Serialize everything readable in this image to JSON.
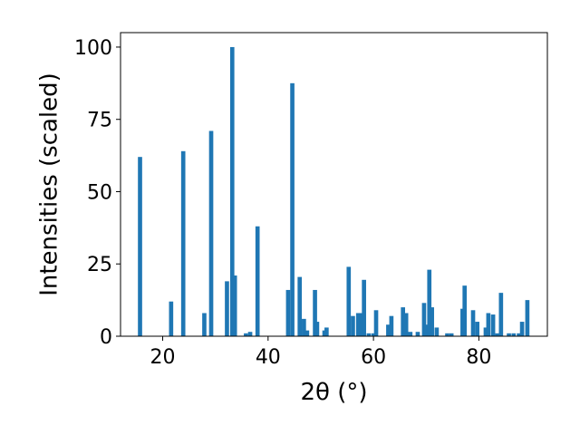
{
  "chart_data": {
    "type": "bar",
    "xlabel": "2θ (°)",
    "ylabel": "Intensities (scaled)",
    "xlim": [
      12,
      93
    ],
    "ylim": [
      0,
      105
    ],
    "xticks": [
      20,
      40,
      60,
      80
    ],
    "yticks": [
      0,
      25,
      50,
      75,
      100
    ],
    "bar_color": "#1f77b4",
    "bar_width": 0.8,
    "grid": false,
    "x": [
      15.7,
      21.6,
      23.9,
      27.9,
      29.2,
      32.2,
      33.2,
      33.7,
      35.8,
      36.6,
      38.0,
      43.8,
      44.6,
      46.0,
      46.8,
      47.4,
      48.9,
      49.3,
      50.7,
      51.1,
      55.3,
      56.1,
      57.1,
      57.7,
      58.2,
      59.1,
      60.0,
      60.5,
      62.8,
      63.4,
      65.6,
      66.2,
      67.0,
      68.4,
      69.6,
      70.1,
      70.6,
      71.1,
      72.0,
      74.0,
      74.8,
      76.9,
      77.3,
      78.9,
      79.7,
      81.3,
      81.8,
      82.7,
      83.5,
      84.2,
      85.7,
      86.6,
      87.6,
      88.2,
      89.2
    ],
    "values": [
      62,
      12,
      64,
      8,
      71,
      19,
      100,
      21,
      1,
      1.5,
      38,
      16,
      87.5,
      20.5,
      6,
      2,
      16,
      5,
      2,
      3,
      24,
      7,
      8,
      8,
      19.5,
      1,
      1,
      9,
      4,
      7,
      10,
      8,
      1.5,
      1.5,
      11.5,
      4,
      23,
      10,
      3,
      1,
      1,
      9.5,
      17.5,
      9,
      5,
      3,
      8,
      7.5,
      1,
      15,
      1,
      1,
      1,
      5,
      12.5
    ]
  }
}
